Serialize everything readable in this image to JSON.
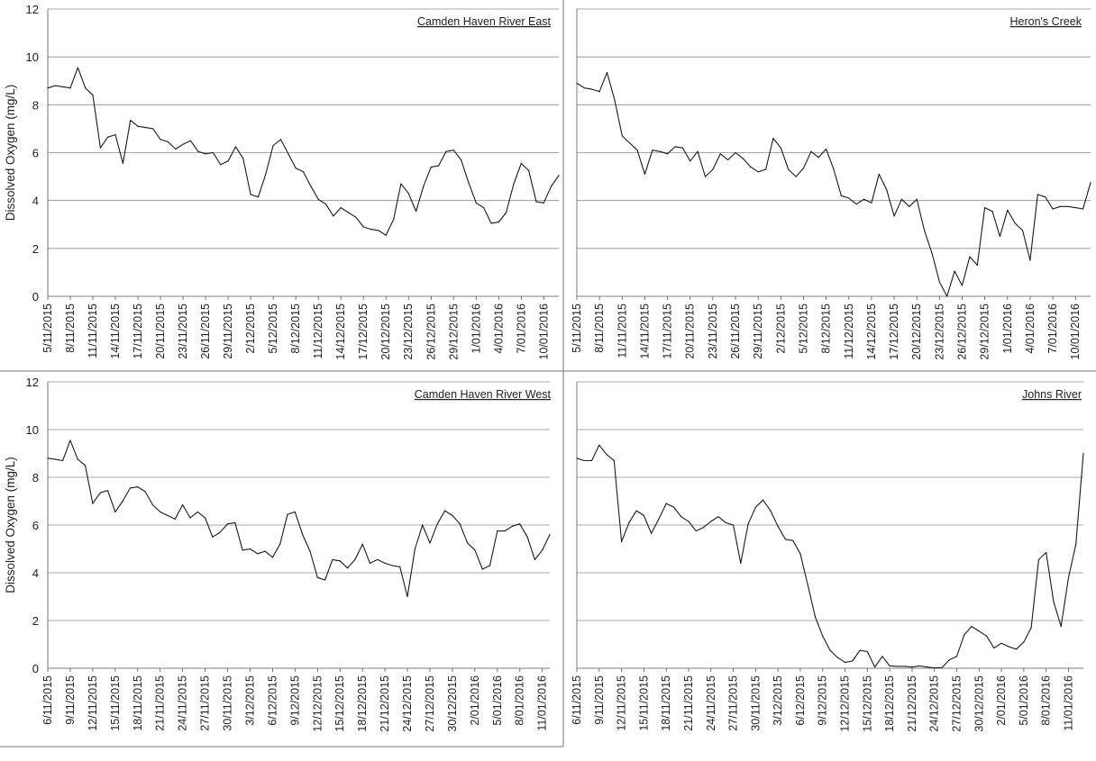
{
  "chart_data": [
    {
      "type": "line",
      "title": "Camden Haven River East",
      "ylabel": "Dissolved Oxygen (mg/L)",
      "ylim": [
        0,
        12
      ],
      "yticks": [
        "0",
        "2",
        "4",
        "6",
        "8",
        "10",
        "12"
      ],
      "grid": true,
      "xtick_labels": [
        "5/11/2015",
        "8/11/2015",
        "11/11/2015",
        "14/11/2015",
        "17/11/2015",
        "20/11/2015",
        "23/11/2015",
        "26/11/2015",
        "29/11/2015",
        "2/12/2015",
        "5/12/2015",
        "8/12/2015",
        "11/12/2015",
        "14/12/2015",
        "17/12/2015",
        "20/12/2015",
        "23/12/2015",
        "26/12/2015",
        "29/12/2015",
        "1/01/2016",
        "4/01/2016",
        "7/01/2016",
        "10/01/2016"
      ],
      "values": [
        8.7,
        8.8,
        8.75,
        8.7,
        9.55,
        8.7,
        8.4,
        6.2,
        6.65,
        6.75,
        5.55,
        7.35,
        7.1,
        7.05,
        7.0,
        6.55,
        6.45,
        6.15,
        6.35,
        6.5,
        6.05,
        5.95,
        6.0,
        5.5,
        5.65,
        6.25,
        5.75,
        4.25,
        4.15,
        5.1,
        6.3,
        6.55,
        5.95,
        5.35,
        5.2,
        4.6,
        4.05,
        3.85,
        3.35,
        3.7,
        3.5,
        3.3,
        2.9,
        2.8,
        2.75,
        2.55,
        3.2,
        4.7,
        4.3,
        3.55,
        4.6,
        5.4,
        5.45,
        6.05,
        6.1,
        5.7,
        4.75,
        3.9,
        3.7,
        3.05,
        3.1,
        3.5,
        4.7,
        5.55,
        5.25,
        3.95,
        3.9,
        4.6,
        5.05
      ]
    },
    {
      "type": "line",
      "title": "Heron's Creek",
      "ylabel": "",
      "ylim": [
        0,
        12
      ],
      "grid": true,
      "xtick_labels": [
        "5/11/2015",
        "8/11/2015",
        "11/11/2015",
        "14/11/2015",
        "17/11/2015",
        "20/11/2015",
        "23/11/2015",
        "26/11/2015",
        "29/11/2015",
        "2/12/2015",
        "5/12/2015",
        "8/12/2015",
        "11/12/2015",
        "14/12/2015",
        "17/12/2015",
        "20/12/2015",
        "23/12/2015",
        "26/12/2015",
        "29/12/2015",
        "1/01/2016",
        "4/01/2016",
        "7/01/2016",
        "10/01/2016"
      ],
      "values": [
        8.9,
        8.7,
        8.65,
        8.55,
        9.35,
        8.2,
        6.7,
        6.4,
        6.1,
        5.1,
        6.1,
        6.05,
        5.95,
        6.25,
        6.2,
        5.65,
        6.05,
        5.0,
        5.3,
        5.95,
        5.7,
        6.0,
        5.75,
        5.4,
        5.2,
        5.3,
        6.6,
        6.2,
        5.3,
        5.0,
        5.35,
        6.05,
        5.8,
        6.15,
        5.3,
        4.2,
        4.1,
        3.85,
        4.05,
        3.9,
        5.1,
        4.45,
        3.35,
        4.05,
        3.75,
        4.05,
        2.75,
        1.8,
        0.6,
        0.0,
        1.05,
        0.45,
        1.65,
        1.3,
        3.7,
        3.55,
        2.5,
        3.6,
        3.05,
        2.75,
        1.5,
        4.25,
        4.15,
        3.65,
        3.75,
        3.75,
        3.7,
        3.65,
        4.75
      ]
    },
    {
      "type": "line",
      "title": "Camden Haven River West",
      "ylabel": "Dissolved Oxygen (mg/L)",
      "ylim": [
        0,
        12
      ],
      "yticks": [
        "0",
        "2",
        "4",
        "6",
        "8",
        "10",
        "12"
      ],
      "grid": true,
      "xtick_labels": [
        "6/11/2015",
        "9/11/2015",
        "12/11/2015",
        "15/11/2015",
        "18/11/2015",
        "21/11/2015",
        "24/11/2015",
        "27/11/2015",
        "30/11/2015",
        "3/12/2015",
        "6/12/2015",
        "9/12/2015",
        "12/12/2015",
        "15/12/2015",
        "18/12/2015",
        "21/12/2015",
        "24/12/2015",
        "27/12/2015",
        "30/12/2015",
        "2/01/2016",
        "5/01/2016",
        "8/01/2016",
        "11/01/2016"
      ],
      "values": [
        8.8,
        8.75,
        8.7,
        9.55,
        8.75,
        8.5,
        6.9,
        7.35,
        7.45,
        6.55,
        7.0,
        7.55,
        7.6,
        7.4,
        6.85,
        6.55,
        6.4,
        6.25,
        6.85,
        6.3,
        6.55,
        6.3,
        5.5,
        5.7,
        6.05,
        6.1,
        4.95,
        5.0,
        4.8,
        4.9,
        4.65,
        5.2,
        6.45,
        6.55,
        5.6,
        4.9,
        3.8,
        3.7,
        4.55,
        4.5,
        4.2,
        4.55,
        5.2,
        4.4,
        4.55,
        4.4,
        4.3,
        4.25,
        3.0,
        5.0,
        6.0,
        5.25,
        6.05,
        6.6,
        6.4,
        6.05,
        5.25,
        4.95,
        4.15,
        4.3,
        5.75,
        5.75,
        5.95,
        6.05,
        5.5,
        4.55,
        4.95,
        5.6
      ]
    },
    {
      "type": "line",
      "title": "Johns River",
      "ylabel": "",
      "ylim": [
        0,
        12
      ],
      "grid": true,
      "xtick_labels": [
        "6/11/2015",
        "9/11/2015",
        "12/11/2015",
        "15/11/2015",
        "18/11/2015",
        "21/11/2015",
        "24/11/2015",
        "27/11/2015",
        "30/11/2015",
        "3/12/2015",
        "6/12/2015",
        "9/12/2015",
        "12/12/2015",
        "15/12/2015",
        "18/12/2015",
        "21/12/2015",
        "24/12/2015",
        "27/12/2015",
        "30/12/2015",
        "2/01/2016",
        "5/01/2016",
        "8/01/2016",
        "11/01/2016"
      ],
      "values": [
        8.8,
        8.7,
        8.7,
        9.35,
        8.95,
        8.7,
        5.3,
        6.1,
        6.6,
        6.4,
        5.65,
        6.25,
        6.9,
        6.75,
        6.35,
        6.15,
        5.75,
        5.9,
        6.15,
        6.35,
        6.1,
        6.0,
        4.4,
        6.05,
        6.75,
        7.05,
        6.6,
        5.95,
        5.4,
        5.35,
        4.8,
        3.5,
        2.15,
        1.35,
        0.75,
        0.45,
        0.25,
        0.3,
        0.75,
        0.7,
        0.05,
        0.5,
        0.1,
        0.08,
        0.08,
        0.05,
        0.1,
        0.05,
        0.02,
        0.02,
        0.35,
        0.5,
        1.4,
        1.75,
        1.55,
        1.35,
        0.85,
        1.05,
        0.9,
        0.8,
        1.1,
        1.7,
        4.55,
        4.85,
        2.8,
        1.75,
        3.8,
        5.2,
        9.0
      ]
    }
  ]
}
